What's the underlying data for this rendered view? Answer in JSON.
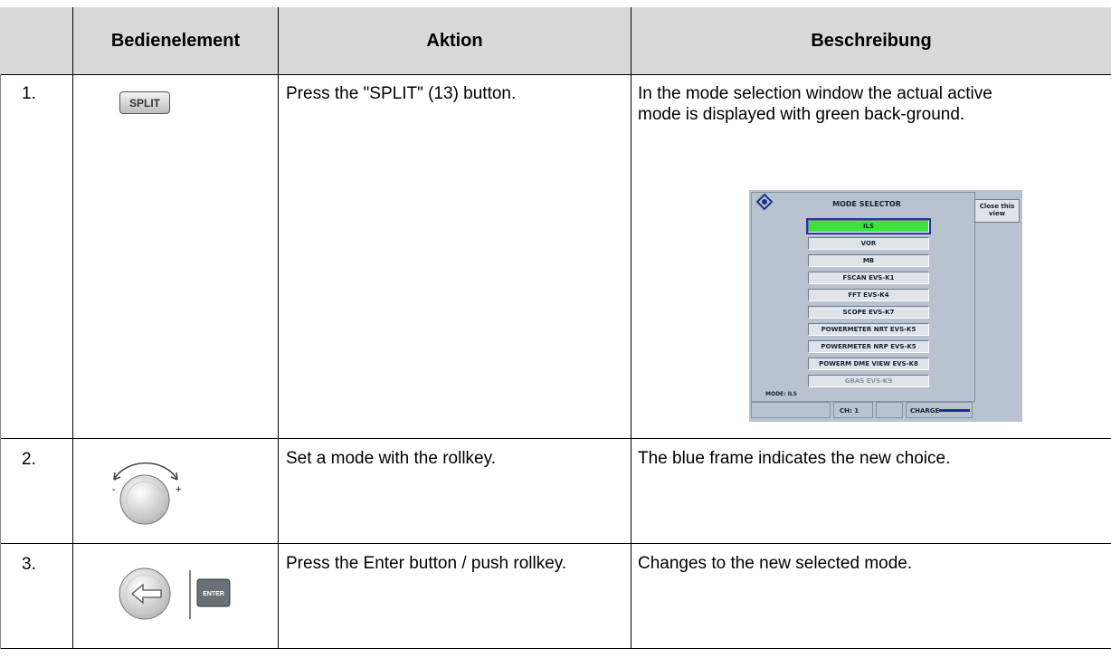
{
  "table": {
    "header": [
      "Bedienelement",
      "Aktion",
      "Beschreibung"
    ],
    "rows": [
      {
        "number": "1.",
        "control": "SPLIT",
        "action": "Press the \"SPLIT\" (13) button.",
        "description": "In the mode selection window the actual active mode is displayed with green back-ground."
      },
      {
        "number": "2.",
        "action": "Set a mode with the rollkey.",
        "description": "The blue frame indicates the new choice."
      },
      {
        "number": "3.",
        "action": "Press the Enter button / push rollkey.",
        "description": "Changes to the new selected mode."
      }
    ]
  },
  "mode_selector": {
    "title": "MODE SELECTOR",
    "close": "Close this view",
    "modes": [
      "ILS",
      "VOR",
      "MB",
      "FSCAN EVS-K1",
      "FFT EVS-K4",
      "SCOPE EVS-K7",
      "POWERMETER NRT EVS-K5",
      "POWERMETER NRP EVS-K5",
      "POWERM DME VIEW EVS-K8",
      "GBAS EVS-K9"
    ],
    "mode_status": "MODE: ILS",
    "channel": "CH: 1",
    "charge": "CHARGE"
  },
  "rollkey": {
    "minus": "-",
    "plus": "+"
  },
  "enter_key": "ENTER"
}
